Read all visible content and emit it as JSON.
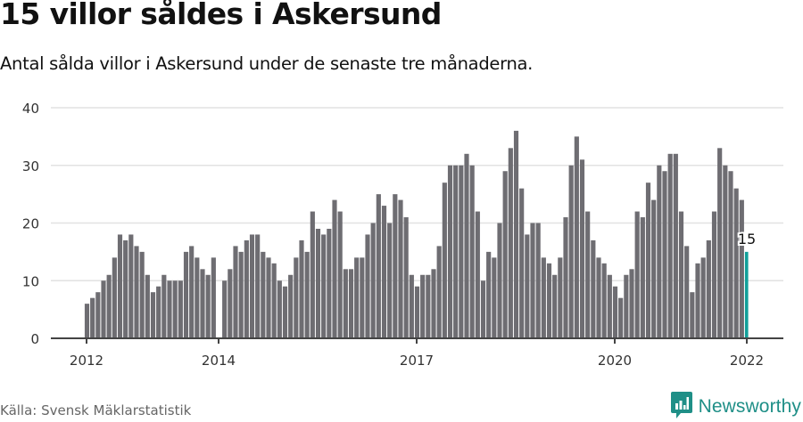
{
  "header": {
    "title": "15 villor såldes i Askersund",
    "subtitle": "Antal sålda villor i Askersund under de senaste tre månaderna."
  },
  "footer": {
    "source": "Källa: Svensk Mäklarstatistik",
    "brand": "Newsworthy",
    "brand_icon": "bar-chart-speech-bubble-icon"
  },
  "colors": {
    "bar": "#6e6d72",
    "highlight": "#11a09a",
    "grid": "#e2e2e2",
    "axis": "#444444",
    "brand": "#1f8f87"
  },
  "chart_data": {
    "type": "bar",
    "title": "15 villor såldes i Askersund",
    "subtitle": "Antal sålda villor i Askersund under de senaste tre månaderna.",
    "xlabel": "",
    "ylabel": "",
    "ylim": [
      0,
      40
    ],
    "yticks": [
      0,
      10,
      20,
      30,
      40
    ],
    "xticks": [
      "2012",
      "2014",
      "2017",
      "2020",
      "2022"
    ],
    "xtick_month_index": [
      0,
      24,
      60,
      96,
      120
    ],
    "grid": true,
    "legend": "none",
    "start": "2012-01",
    "frequency": "monthly",
    "highlight": {
      "index": 120,
      "label": "15"
    },
    "values": [
      6,
      7,
      8,
      10,
      11,
      14,
      18,
      17,
      18,
      16,
      15,
      11,
      8,
      9,
      11,
      10,
      10,
      10,
      15,
      16,
      14,
      12,
      11,
      14,
      0,
      10,
      12,
      16,
      15,
      17,
      18,
      18,
      15,
      14,
      13,
      10,
      9,
      11,
      14,
      17,
      15,
      22,
      19,
      18,
      19,
      24,
      22,
      12,
      12,
      14,
      14,
      18,
      20,
      25,
      23,
      20,
      25,
      24,
      21,
      11,
      9,
      11,
      11,
      12,
      16,
      27,
      30,
      30,
      30,
      32,
      30,
      22,
      10,
      15,
      14,
      20,
      29,
      33,
      36,
      26,
      18,
      20,
      20,
      14,
      13,
      11,
      14,
      21,
      30,
      35,
      31,
      22,
      17,
      14,
      13,
      11,
      9,
      7,
      11,
      12,
      22,
      21,
      27,
      24,
      30,
      29,
      32,
      32,
      22,
      16,
      8,
      13,
      14,
      17,
      22,
      33,
      30,
      29,
      26,
      24,
      15
    ]
  }
}
